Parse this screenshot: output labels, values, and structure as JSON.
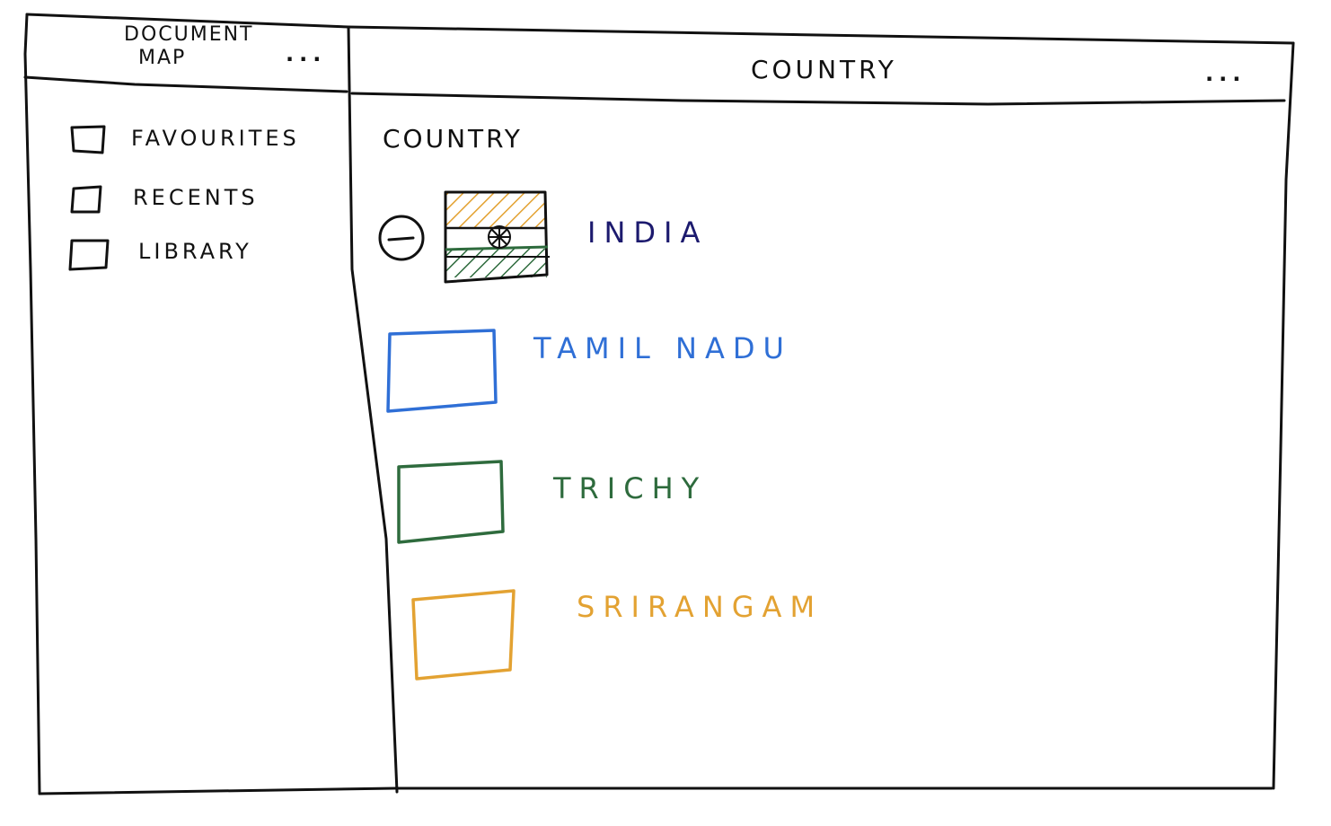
{
  "document_map": {
    "title_line1": "Document",
    "title_line2": "Map",
    "more_label": "...",
    "items": [
      {
        "label": "Favourites"
      },
      {
        "label": "Recents"
      },
      {
        "label": "Library"
      }
    ]
  },
  "country_pane": {
    "title": "Country",
    "more_label": "...",
    "section_heading": "Country",
    "collapse_label": "−",
    "nodes": [
      {
        "label": "India",
        "color": "#1c1a6e"
      },
      {
        "label": "Tamil Nadu",
        "color": "#2f6fd6"
      },
      {
        "label": "Trichy",
        "color": "#2e6b3d"
      },
      {
        "label": "Srirangam",
        "color": "#e3a232"
      }
    ],
    "flag_colors": {
      "saffron": "#e3a232",
      "green": "#2e6b3d",
      "chakra": "#111111"
    }
  }
}
